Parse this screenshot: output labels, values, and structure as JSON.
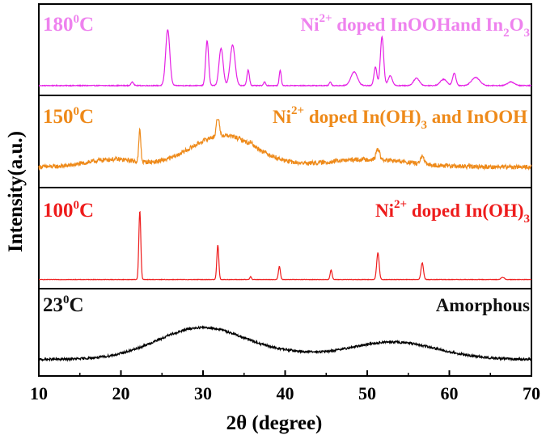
{
  "chart_data": {
    "type": "line",
    "xlabel": "2θ (degree)",
    "ylabel": "Intensity(a.u.)",
    "xlim": [
      10,
      70
    ],
    "xticks": [
      "10",
      "20",
      "30",
      "40",
      "50",
      "60",
      "70"
    ],
    "grid": false,
    "layout": "four stacked panels sharing the x axis",
    "panels": [
      {
        "temp_value": "180",
        "temp_sup": "0",
        "temp_unit": "C",
        "color": "#e520e5",
        "label_color": "#ee82ee",
        "phase_label": {
          "p1": "Ni",
          "s1": "2+",
          "p2": " doped InOOHand In",
          "s2": "2",
          "p3": "O",
          "s3": "3"
        },
        "baseline": 0.08,
        "noise": 0.006,
        "broad": [],
        "peaks": [
          [
            21.4,
            0.06,
            0.15
          ],
          [
            25.7,
            0.9,
            0.25
          ],
          [
            30.5,
            0.72,
            0.18
          ],
          [
            32.2,
            0.6,
            0.25
          ],
          [
            33.6,
            0.65,
            0.3
          ],
          [
            35.5,
            0.25,
            0.15
          ],
          [
            37.5,
            0.06,
            0.12
          ],
          [
            39.4,
            0.25,
            0.12
          ],
          [
            45.5,
            0.06,
            0.12
          ],
          [
            48.4,
            0.22,
            0.4
          ],
          [
            51.0,
            0.3,
            0.18
          ],
          [
            51.8,
            0.78,
            0.2
          ],
          [
            52.8,
            0.16,
            0.25
          ],
          [
            56.0,
            0.12,
            0.35
          ],
          [
            59.3,
            0.1,
            0.4
          ],
          [
            60.6,
            0.2,
            0.2
          ],
          [
            63.2,
            0.13,
            0.5
          ],
          [
            67.5,
            0.06,
            0.4
          ]
        ]
      },
      {
        "temp_value": "150",
        "temp_sup": "0",
        "temp_unit": "C",
        "color": "#ee8a1a",
        "label_color": "#ee8a1a",
        "phase_label": {
          "p1": "Ni",
          "s1": "2+",
          "p2": " doped In(OH)",
          "s2": "3",
          "p3": " and InOOH",
          "s3": ""
        },
        "baseline": 0.25,
        "noise": 0.035,
        "broad": [
          [
            32.5,
            0.5,
            4.0
          ],
          [
            19,
            0.12,
            3.0
          ],
          [
            50,
            0.12,
            5.0
          ]
        ],
        "peaks": [
          [
            22.3,
            0.5,
            0.12
          ],
          [
            31.8,
            0.4,
            0.15
          ],
          [
            51.3,
            0.18,
            0.2
          ],
          [
            56.7,
            0.12,
            0.2
          ],
          [
            35.9,
            0.05,
            0.15
          ]
        ]
      },
      {
        "temp_value": "100",
        "temp_sup": "0",
        "temp_unit": "C",
        "color": "#ee1c1c",
        "label_color": "#ee1c1c",
        "phase_label": {
          "p1": "Ni",
          "s1": "2+",
          "p2": " doped In(OH)",
          "s2": "3",
          "p3": "",
          "s3": ""
        },
        "baseline": 0.06,
        "noise": 0.003,
        "broad": [],
        "peaks": [
          [
            22.3,
            0.95,
            0.12
          ],
          [
            31.8,
            0.48,
            0.12
          ],
          [
            35.8,
            0.04,
            0.1
          ],
          [
            39.3,
            0.18,
            0.12
          ],
          [
            45.6,
            0.13,
            0.12
          ],
          [
            51.3,
            0.37,
            0.15
          ],
          [
            56.7,
            0.23,
            0.15
          ],
          [
            66.5,
            0.03,
            0.2
          ]
        ]
      },
      {
        "temp_value": "23",
        "temp_sup": "0",
        "temp_unit": "C",
        "color": "#000000",
        "label_color": "#111111",
        "phase_label": {
          "p1": "Amorphous",
          "s1": "",
          "p2": "",
          "s2": "",
          "p3": "",
          "s3": ""
        },
        "baseline": 0.2,
        "noise": 0.02,
        "broad": [
          [
            30,
            0.55,
            5.5
          ],
          [
            53,
            0.3,
            5.5
          ],
          [
            41,
            0.05,
            3.0
          ]
        ],
        "peaks": []
      }
    ]
  }
}
